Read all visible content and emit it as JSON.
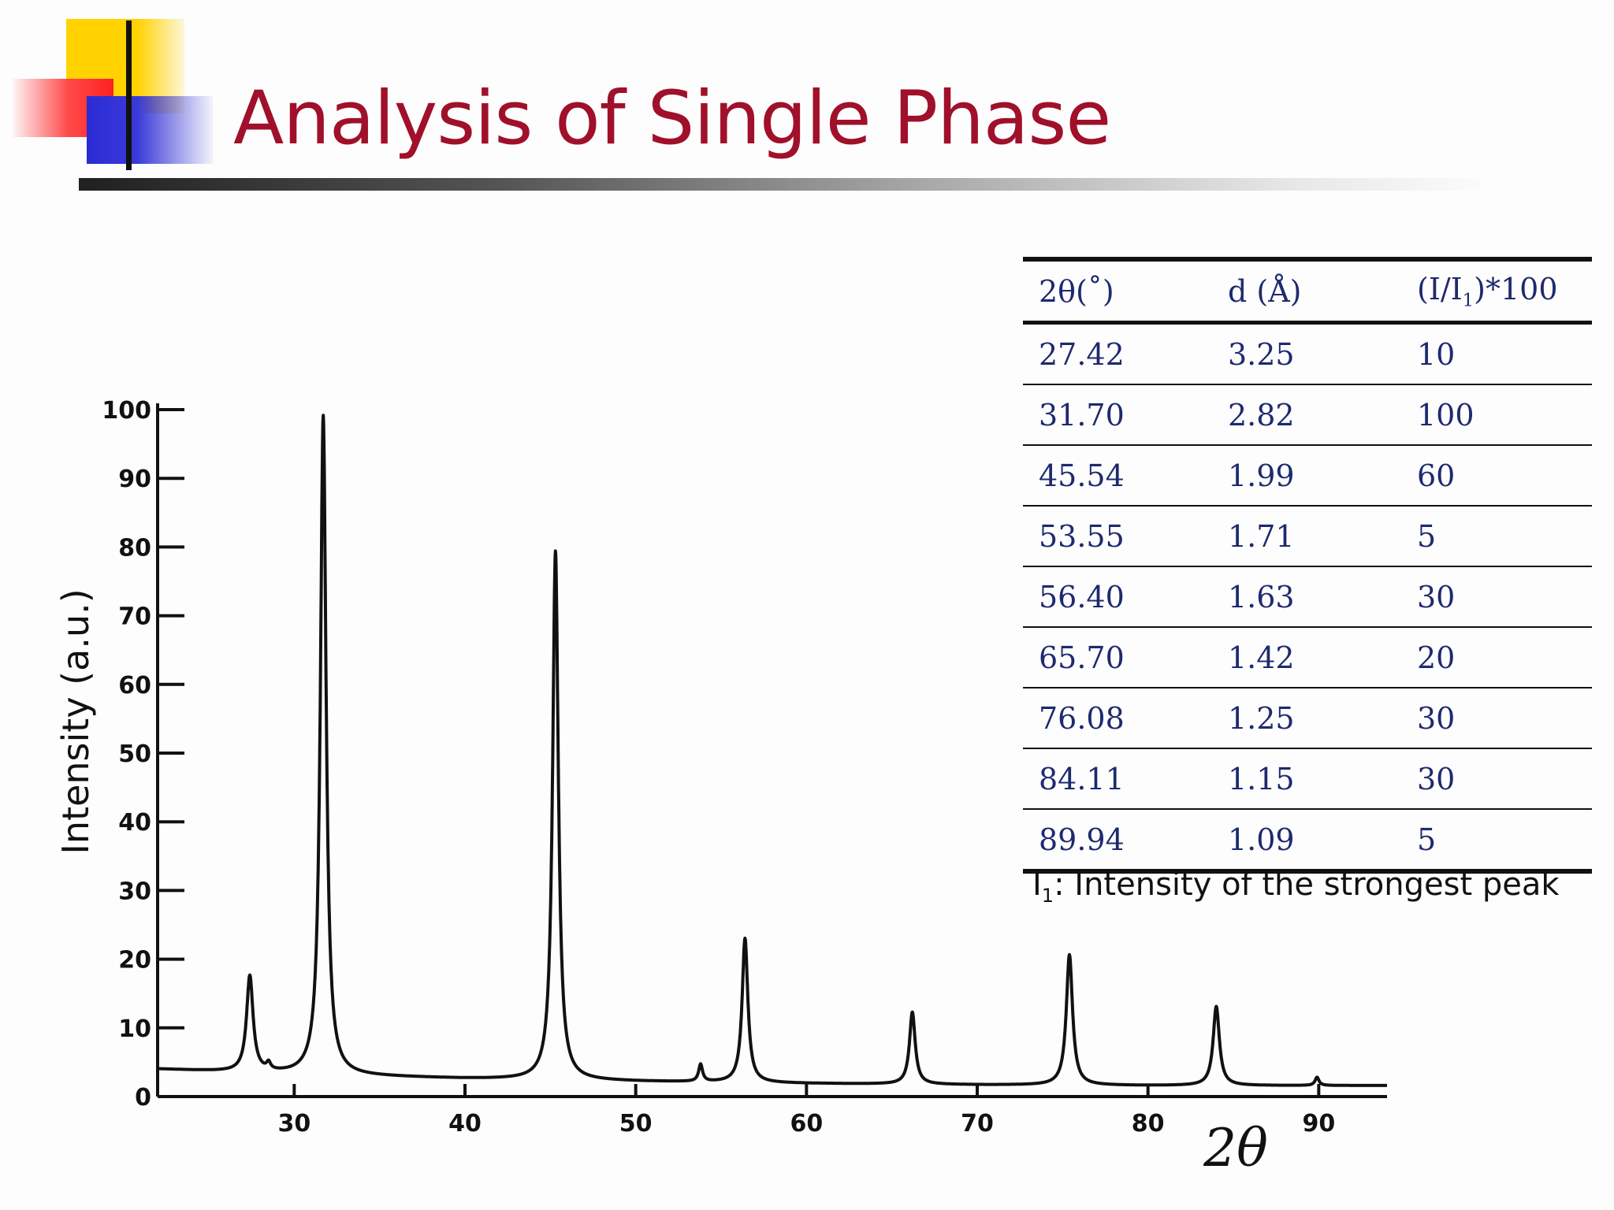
{
  "slide": {
    "title": "Analysis of Single Phase"
  },
  "chart_data": {
    "type": "line",
    "xlabel": "2θ",
    "ylabel": "Intensity (a.u.)",
    "xlim": [
      22,
      94
    ],
    "ylim": [
      0,
      100
    ],
    "x_ticks": [
      30,
      40,
      50,
      60,
      70,
      80,
      90
    ],
    "y_ticks": [
      0,
      10,
      20,
      30,
      40,
      50,
      60,
      70,
      80,
      90,
      100
    ],
    "grid": false,
    "series": [
      {
        "baseline": [
          [
            22,
            4.0
          ],
          [
            30,
            3.2
          ],
          [
            40,
            2.6
          ],
          [
            50,
            2.2
          ],
          [
            60,
            1.9
          ],
          [
            70,
            1.7
          ],
          [
            80,
            1.6
          ],
          [
            94,
            1.6
          ]
        ],
        "peaks": [
          {
            "x": 27.4,
            "height": 14,
            "width": 0.25
          },
          {
            "x": 28.5,
            "height": 1.0,
            "width": 0.15
          },
          {
            "x": 31.7,
            "height": 96,
            "width": 0.22
          },
          {
            "x": 45.3,
            "height": 77,
            "width": 0.22
          },
          {
            "x": 53.8,
            "height": 2.5,
            "width": 0.15
          },
          {
            "x": 56.4,
            "height": 21,
            "width": 0.22
          },
          {
            "x": 66.2,
            "height": 10.5,
            "width": 0.22
          },
          {
            "x": 75.4,
            "height": 19,
            "width": 0.24
          },
          {
            "x": 84.0,
            "height": 11.5,
            "width": 0.24
          },
          {
            "x": 89.9,
            "height": 1.2,
            "width": 0.15
          }
        ]
      }
    ]
  },
  "table": {
    "headers": [
      "2θ(˚)",
      "d (Å)",
      "(I/I",
      "1",
      ")*100"
    ],
    "rows": [
      [
        "27.42",
        "3.25",
        "10"
      ],
      [
        "31.70",
        "2.82",
        "100"
      ],
      [
        "45.54",
        "1.99",
        "60"
      ],
      [
        "53.55",
        "1.71",
        "5"
      ],
      [
        "56.40",
        "1.63",
        "30"
      ],
      [
        "65.70",
        "1.42",
        "20"
      ],
      [
        "76.08",
        "1.25",
        "30"
      ],
      [
        "84.11",
        "1.15",
        "30"
      ],
      [
        "89.94",
        "1.09",
        "5"
      ]
    ],
    "note_symbol": "I",
    "note_sub": "1",
    "note_text": ": Intensity of the strongest peak"
  }
}
